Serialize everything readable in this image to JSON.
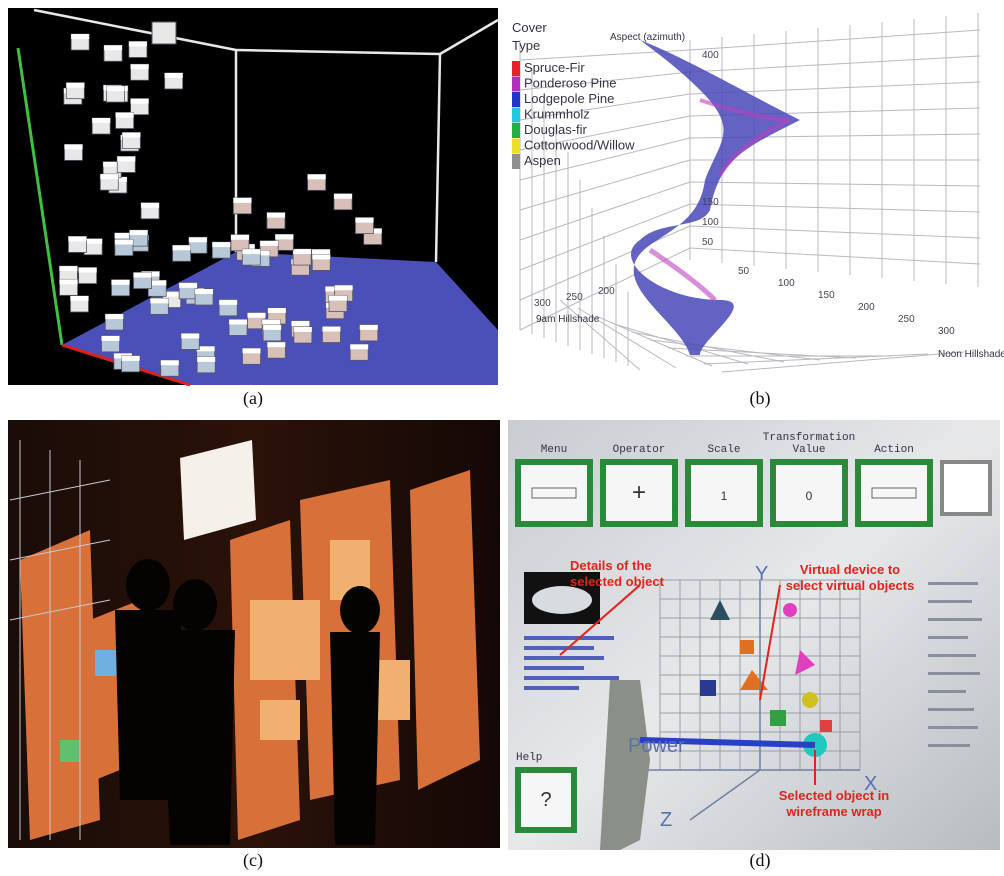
{
  "panels": [
    {
      "caption": "(a)"
    },
    {
      "caption": "(b)",
      "legend_title": [
        "Cover",
        "Type"
      ],
      "legend": [
        {
          "name": "Spruce-Fir",
          "color": "#e8202a"
        },
        {
          "name": "Ponderoso Pine",
          "color": "#b030c0"
        },
        {
          "name": "Lodgepole Pine",
          "color": "#2434c8"
        },
        {
          "name": "Krummholz",
          "color": "#20c8e0"
        },
        {
          "name": "Douglas-fir",
          "color": "#20b040"
        },
        {
          "name": "Cottonwood/Willow",
          "color": "#e8e020"
        },
        {
          "name": "Aspen",
          "color": "#909090"
        }
      ],
      "axis_labels": {
        "z": "Aspect (azimuth)",
        "x": "9am Hillshade",
        "y": "Noon Hillshade"
      },
      "z_ticks": [
        "400",
        "150",
        "100",
        "50"
      ],
      "x_ticks": [
        "300",
        "250",
        "200"
      ],
      "y_ticks": [
        "50",
        "100",
        "150",
        "200",
        "250",
        "300"
      ]
    },
    {
      "caption": "(c)"
    },
    {
      "caption": "(d)",
      "buttons": [
        {
          "title": [
            "Menu"
          ],
          "content": ""
        },
        {
          "title": [
            "Operator"
          ],
          "content": "+"
        },
        {
          "title": [
            "Scale"
          ],
          "content": "1"
        },
        {
          "title": [
            "Transformation",
            "Value"
          ],
          "content": "0"
        },
        {
          "title": [
            "Action"
          ],
          "content": ""
        }
      ],
      "help": {
        "title": "Help",
        "content": "?"
      },
      "annotations": [
        [
          "Details of the",
          "selected object"
        ],
        [
          "Virtual device to",
          "select virtual objects"
        ],
        [
          "Selected object in",
          "wireframe wrap"
        ]
      ],
      "axis_letters": {
        "y": "Y",
        "x": "X",
        "z": "Z",
        "power": "Power"
      }
    }
  ]
}
